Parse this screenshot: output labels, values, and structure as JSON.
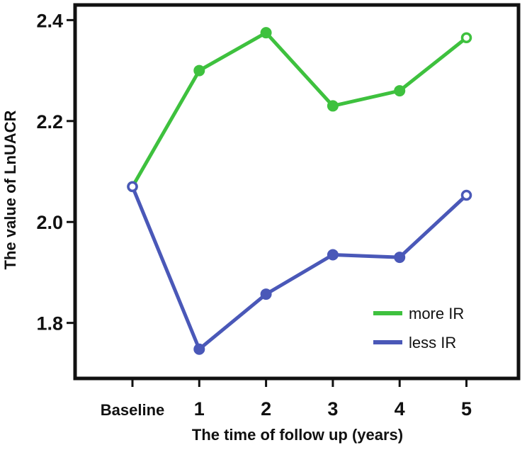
{
  "chart_data": {
    "type": "line",
    "title": "",
    "xlabel": "The time of follow up (years)",
    "ylabel": "The value of LnUACR",
    "categories": [
      "Baseline",
      "1",
      "2",
      "3",
      "4",
      "5"
    ],
    "ylim": [
      1.69,
      2.43
    ],
    "yticks": [
      1.8,
      2.0,
      2.2,
      2.4
    ],
    "ytick_labels": [
      "1.8",
      "2.0",
      "2.2",
      "2.4"
    ],
    "grid": false,
    "legend_position": "bottom-right",
    "series": [
      {
        "name": "more IR",
        "color": "#3ec13e",
        "values": [
          2.07,
          2.3,
          2.375,
          2.23,
          2.26,
          2.365
        ]
      },
      {
        "name": "less IR",
        "color": "#4a58b8",
        "values": [
          2.07,
          1.748,
          1.857,
          1.935,
          1.93,
          2.053
        ]
      }
    ]
  }
}
